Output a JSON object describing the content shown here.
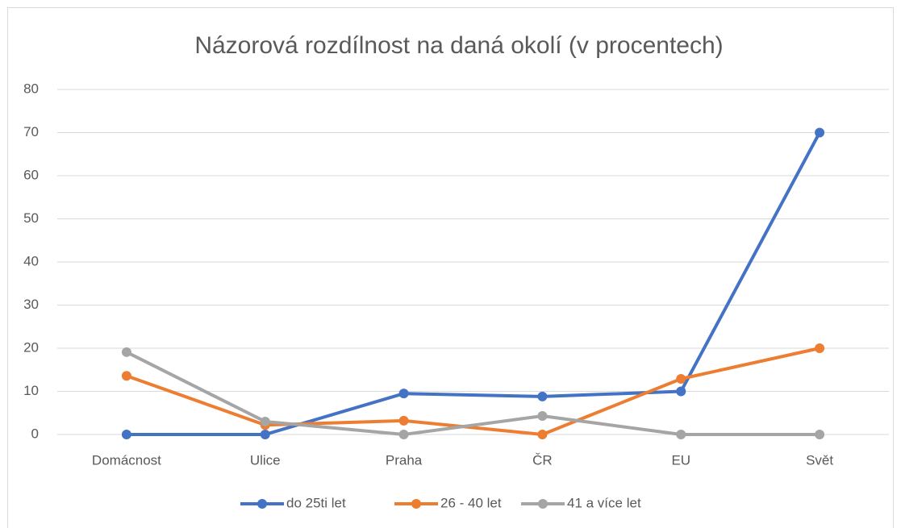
{
  "chart_data": {
    "type": "line",
    "title": "Názorová rozdílnost na daná okolí (v procentech)",
    "categories": [
      "Domácnost",
      "Ulice",
      "Praha",
      "ČR",
      "EU",
      "Svět"
    ],
    "series": [
      {
        "name": "do 25ti let",
        "color": "#4472c4",
        "values": [
          0,
          0,
          9.5,
          8.8,
          10,
          70
        ]
      },
      {
        "name": "26 - 40 let",
        "color": "#ed7d31",
        "values": [
          13.6,
          2.2,
          3.2,
          0,
          12.9,
          20
        ]
      },
      {
        "name": "41 a více let",
        "color": "#a5a5a5",
        "values": [
          19.1,
          3.0,
          0,
          4.3,
          0,
          0
        ]
      }
    ],
    "ylim": [
      0,
      80
    ],
    "yticks": [
      0,
      10,
      20,
      30,
      40,
      50,
      60,
      70,
      80
    ],
    "grid": true,
    "legend": "bottom"
  }
}
